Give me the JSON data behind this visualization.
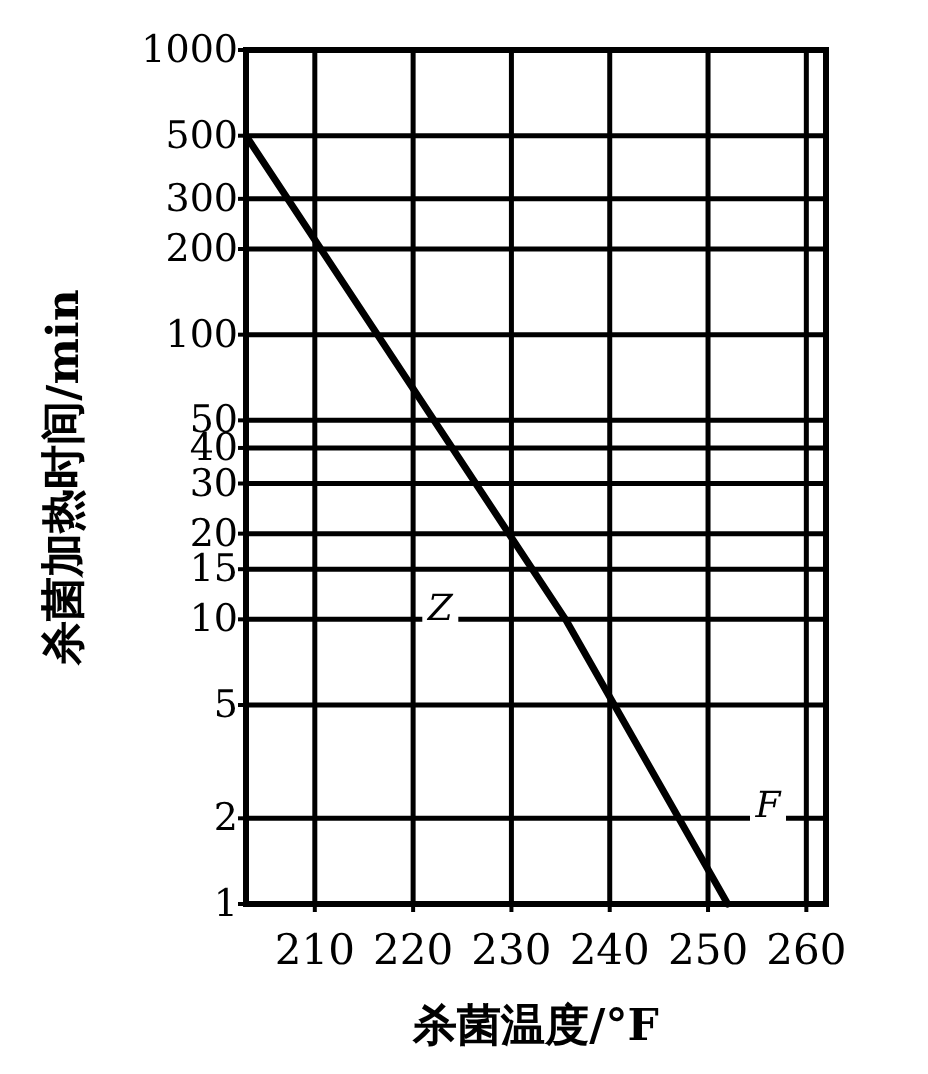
{
  "chart_data": {
    "type": "line",
    "xlabel": "杀菌温度/°F",
    "ylabel": "杀菌加热时间/min",
    "x": [
      203,
      235.5,
      252
    ],
    "series": [
      {
        "color": "#000000",
        "values": [
          500,
          10,
          1
        ]
      }
    ],
    "xlim": [
      203,
      262
    ],
    "ylim": [
      1,
      1000
    ],
    "log": "y",
    "xticks": [
      210,
      220,
      230,
      240,
      250,
      260
    ],
    "yticks": [
      1,
      2,
      5,
      10,
      15,
      20,
      30,
      40,
      50,
      100,
      200,
      300,
      500,
      1000
    ],
    "grid": true,
    "annotations": [
      "Z",
      "F"
    ]
  }
}
